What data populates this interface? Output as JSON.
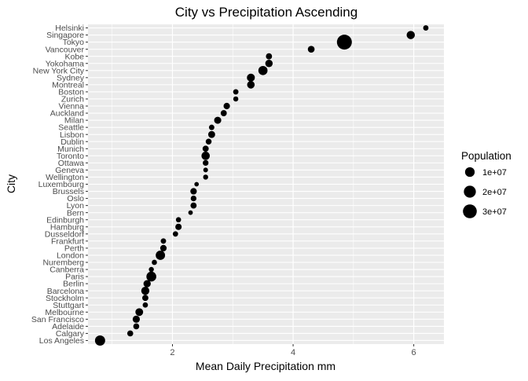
{
  "chart_data": {
    "type": "scatter",
    "title": "City vs Precipitation Ascending",
    "xlabel": "Mean Daily Precipitation mm",
    "ylabel": "City",
    "xlim": [
      0.6,
      6.5
    ],
    "x_ticks": [
      2,
      4,
      6
    ],
    "x_tick_labels": [
      "2",
      "4",
      "6"
    ],
    "grid": true,
    "legend_position": "right",
    "legend": {
      "title": "Population",
      "entries": [
        {
          "label": "1e+07",
          "value": 10000000
        },
        {
          "label": "2e+07",
          "value": 20000000
        },
        {
          "label": "3e+07",
          "value": 30000000
        }
      ]
    },
    "categories": [
      "Los Angeles",
      "Calgary",
      "Adelaide",
      "San Francisco",
      "Melbourne",
      "Stuttgart",
      "Stockholm",
      "Barcelona",
      "Berlin",
      "Paris",
      "Canberra",
      "Nuremberg",
      "London",
      "Perth",
      "Frankfurt",
      "Dusseldorf",
      "Hamburg",
      "Edinburgh",
      "Bern",
      "Lyon",
      "Oslo",
      "Brussels",
      "Luxembourg",
      "Wellington",
      "Geneva",
      "Ottawa",
      "Toronto",
      "Munich",
      "Dublin",
      "Lisbon",
      "Seattle",
      "Milan",
      "Auckland",
      "Vienna",
      "Zurich",
      "Boston",
      "Montreal",
      "Sydney",
      "New York City",
      "Yokohama",
      "Kobe",
      "Vancouver",
      "Tokyo",
      "Singapore",
      "Helsinki"
    ],
    "points": [
      {
        "city": "Los Angeles",
        "precipitation": 0.8,
        "population": 12000000
      },
      {
        "city": "Calgary",
        "precipitation": 1.3,
        "population": 1300000
      },
      {
        "city": "Adelaide",
        "precipitation": 1.4,
        "population": 1300000
      },
      {
        "city": "San Francisco",
        "precipitation": 1.4,
        "population": 3300000
      },
      {
        "city": "Melbourne",
        "precipitation": 1.45,
        "population": 4500000
      },
      {
        "city": "Stuttgart",
        "precipitation": 1.55,
        "population": 600000
      },
      {
        "city": "Stockholm",
        "precipitation": 1.55,
        "population": 1500000
      },
      {
        "city": "Barcelona",
        "precipitation": 1.55,
        "population": 5500000
      },
      {
        "city": "Berlin",
        "precipitation": 1.58,
        "population": 3500000
      },
      {
        "city": "Paris",
        "precipitation": 1.65,
        "population": 10800000
      },
      {
        "city": "Canberra",
        "precipitation": 1.65,
        "population": 400000
      },
      {
        "city": "Nuremberg",
        "precipitation": 1.7,
        "population": 500000
      },
      {
        "city": "London",
        "precipitation": 1.8,
        "population": 9000000
      },
      {
        "city": "Perth",
        "precipitation": 1.85,
        "population": 2000000
      },
      {
        "city": "Frankfurt",
        "precipitation": 1.85,
        "population": 700000
      },
      {
        "city": "Dusseldorf",
        "precipitation": 2.05,
        "population": 600000
      },
      {
        "city": "Hamburg",
        "precipitation": 2.1,
        "population": 1800000
      },
      {
        "city": "Edinburgh",
        "precipitation": 2.1,
        "population": 500000
      },
      {
        "city": "Bern",
        "precipitation": 2.3,
        "population": 130000
      },
      {
        "city": "Lyon",
        "precipitation": 2.35,
        "population": 1500000
      },
      {
        "city": "Oslo",
        "precipitation": 2.35,
        "population": 1000000
      },
      {
        "city": "Brussels",
        "precipitation": 2.35,
        "population": 2000000
      },
      {
        "city": "Luxembourg",
        "precipitation": 2.4,
        "population": 100000
      },
      {
        "city": "Wellington",
        "precipitation": 2.55,
        "population": 400000
      },
      {
        "city": "Geneva",
        "precipitation": 2.55,
        "population": 200000
      },
      {
        "city": "Ottawa",
        "precipitation": 2.55,
        "population": 1000000
      },
      {
        "city": "Toronto",
        "precipitation": 2.55,
        "population": 5900000
      },
      {
        "city": "Munich",
        "precipitation": 2.55,
        "population": 1500000
      },
      {
        "city": "Dublin",
        "precipitation": 2.6,
        "population": 1200000
      },
      {
        "city": "Lisbon",
        "precipitation": 2.65,
        "population": 2800000
      },
      {
        "city": "Seattle",
        "precipitation": 2.65,
        "population": 700000
      },
      {
        "city": "Milan",
        "precipitation": 2.75,
        "population": 3100000
      },
      {
        "city": "Auckland",
        "precipitation": 2.85,
        "population": 1500000
      },
      {
        "city": "Vienna",
        "precipitation": 2.9,
        "population": 1900000
      },
      {
        "city": "Zurich",
        "precipitation": 3.05,
        "population": 400000
      },
      {
        "city": "Boston",
        "precipitation": 3.05,
        "population": 700000
      },
      {
        "city": "Montreal",
        "precipitation": 3.3,
        "population": 4100000
      },
      {
        "city": "Sydney",
        "precipitation": 3.3,
        "population": 5000000
      },
      {
        "city": "New York City",
        "precipitation": 3.5,
        "population": 8400000
      },
      {
        "city": "Yokohama",
        "precipitation": 3.6,
        "population": 3700000
      },
      {
        "city": "Kobe",
        "precipitation": 3.6,
        "population": 1500000
      },
      {
        "city": "Vancouver",
        "precipitation": 4.3,
        "population": 2500000
      },
      {
        "city": "Tokyo",
        "precipitation": 4.85,
        "population": 37000000
      },
      {
        "city": "Singapore",
        "precipitation": 5.95,
        "population": 5700000
      },
      {
        "city": "Helsinki",
        "precipitation": 6.2,
        "population": 650000
      }
    ],
    "point_color": "#000000",
    "panel_color": "#EBEBEB",
    "grid_color": "#FFFFFF"
  }
}
